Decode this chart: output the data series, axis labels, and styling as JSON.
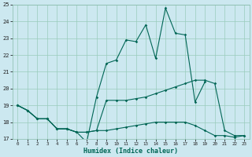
{
  "xlabel": "Humidex (Indice chaleur)",
  "bg_color": "#cce8f0",
  "grid_color": "#99ccbb",
  "line_color": "#006655",
  "x_values": [
    0,
    1,
    2,
    3,
    4,
    5,
    6,
    7,
    8,
    9,
    10,
    11,
    12,
    13,
    14,
    15,
    16,
    17,
    18,
    19,
    20,
    21,
    22,
    23
  ],
  "line1": [
    19.0,
    18.7,
    18.2,
    18.2,
    17.6,
    17.6,
    17.4,
    17.4,
    17.5,
    19.3,
    19.3,
    19.3,
    19.4,
    19.5,
    19.7,
    19.9,
    20.1,
    20.3,
    20.5,
    20.5,
    20.3,
    17.5,
    17.2,
    17.2
  ],
  "line2": [
    19.0,
    18.7,
    18.2,
    18.2,
    17.6,
    17.6,
    17.4,
    17.4,
    17.5,
    17.5,
    17.6,
    17.7,
    17.8,
    17.9,
    18.0,
    18.0,
    18.0,
    18.0,
    17.8,
    17.5,
    17.2,
    17.2,
    17.1,
    17.2
  ],
  "line3": [
    19.0,
    18.7,
    18.2,
    18.2,
    17.6,
    17.6,
    17.4,
    16.8,
    19.5,
    21.5,
    21.7,
    22.9,
    22.8,
    23.8,
    21.8,
    24.8,
    23.3,
    23.2,
    19.2,
    20.4,
    null,
    null,
    null,
    null
  ],
  "ylim": [
    17,
    25
  ],
  "yticks": [
    17,
    18,
    19,
    20,
    21,
    22,
    23,
    24,
    25
  ],
  "xlim": [
    -0.5,
    23.5
  ],
  "xticks": [
    0,
    1,
    2,
    3,
    4,
    5,
    6,
    7,
    8,
    9,
    10,
    11,
    12,
    13,
    14,
    15,
    16,
    17,
    18,
    19,
    20,
    21,
    22,
    23
  ]
}
